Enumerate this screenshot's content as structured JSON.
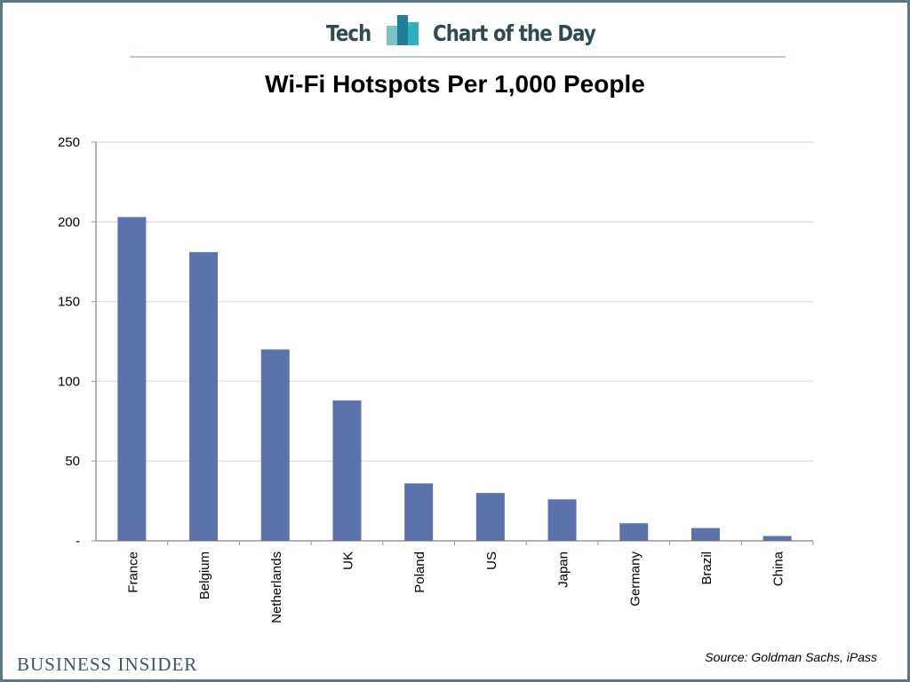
{
  "header": {
    "left": "Tech",
    "right": "Chart of the Day",
    "logo_colors": [
      "#7cc3c8",
      "#1f7f99",
      "#2fb0c0"
    ]
  },
  "footer": {
    "brand": "BUSINESS INSIDER",
    "source": "Source: Goldman Sachs, iPass"
  },
  "chart_data": {
    "type": "bar",
    "title": "Wi-Fi Hotspots Per 1,000 People",
    "categories": [
      "France",
      "Belgium",
      "Netherlands",
      "UK",
      "Poland",
      "US",
      "Japan",
      "Germany",
      "Brazil",
      "China"
    ],
    "values": [
      203,
      181,
      120,
      88,
      36,
      30,
      26,
      11,
      8,
      3
    ],
    "ylim": [
      0,
      250
    ],
    "yticks": [
      0,
      50,
      100,
      150,
      200,
      250
    ],
    "ytick_labels": [
      "-",
      "50",
      "100",
      "150",
      "200",
      "250"
    ],
    "grid": true,
    "bar_color": "#5b73aa",
    "xlabel": "",
    "ylabel": ""
  }
}
